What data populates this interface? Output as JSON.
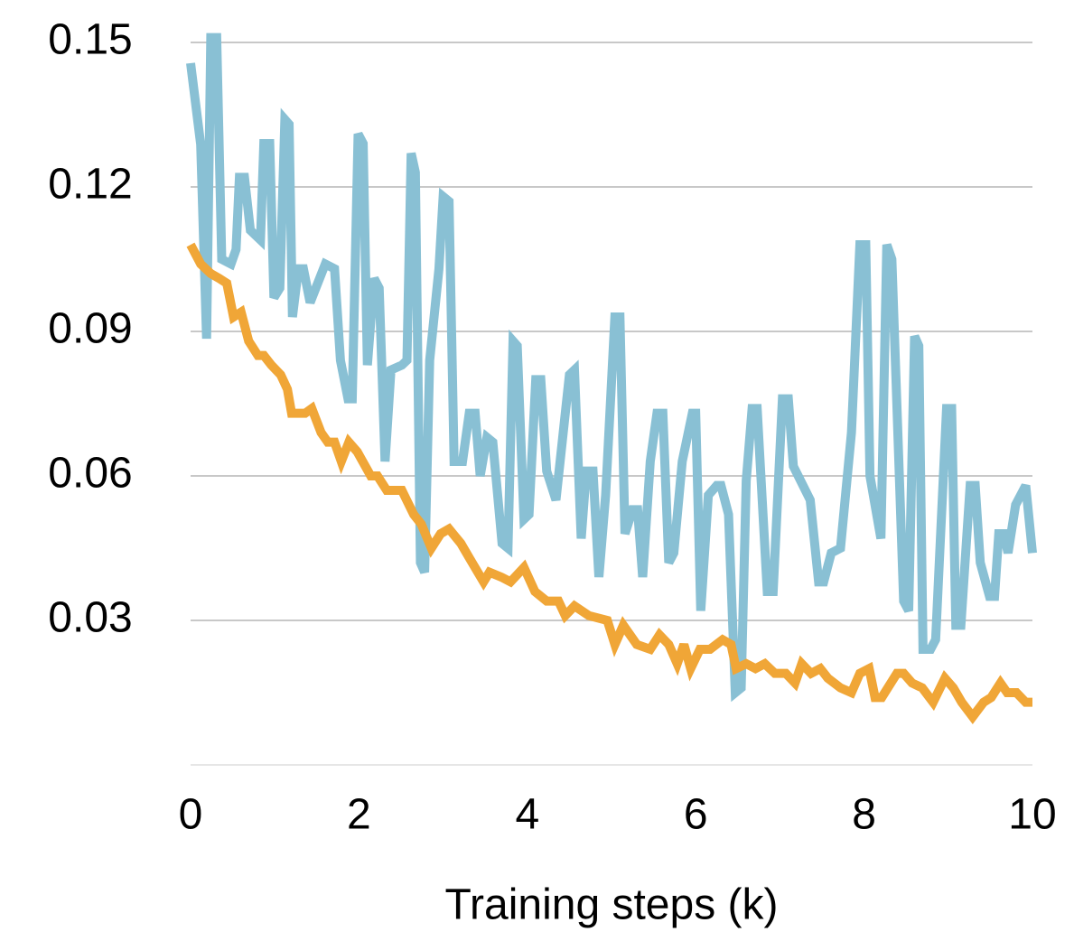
{
  "chart_data": {
    "type": "line",
    "xlabel": "Training steps (k)",
    "xlim": [
      0,
      10
    ],
    "xticks": [
      0,
      2,
      4,
      6,
      8,
      10
    ],
    "ylim": [
      0,
      0.15
    ],
    "yticks": [
      0.03,
      0.06,
      0.09,
      0.12,
      0.15
    ],
    "grid": true,
    "series": [
      {
        "color": "#89c0d4",
        "x": [
          0,
          0.12,
          0.19,
          0.24,
          0.31,
          0.37,
          0.48,
          0.54,
          0.58,
          0.64,
          0.71,
          0.83,
          0.87,
          0.94,
          0.99,
          1.06,
          1.12,
          1.17,
          1.21,
          1.28,
          1.34,
          1.42,
          1.6,
          1.71,
          1.78,
          1.87,
          1.92,
          1.99,
          2.05,
          2.1,
          2.18,
          2.24,
          2.31,
          2.38,
          2.51,
          2.57,
          2.62,
          2.67,
          2.73,
          2.78,
          2.84,
          2.95,
          3.0,
          3.07,
          3.13,
          3.23,
          3.31,
          3.38,
          3.44,
          3.52,
          3.59,
          3.7,
          3.77,
          3.83,
          3.88,
          3.96,
          4.02,
          4.1,
          4.16,
          4.23,
          4.34,
          4.5,
          4.56,
          4.64,
          4.7,
          4.78,
          4.85,
          4.93,
          5.04,
          5.1,
          5.16,
          5.25,
          5.31,
          5.37,
          5.46,
          5.54,
          5.61,
          5.68,
          5.74,
          5.84,
          5.96,
          6.0,
          6.06,
          6.15,
          6.25,
          6.3,
          6.39,
          6.47,
          6.54,
          6.6,
          6.67,
          6.73,
          6.85,
          6.92,
          7.03,
          7.1,
          7.16,
          7.36,
          7.46,
          7.52,
          7.61,
          7.72,
          7.85,
          7.95,
          8.02,
          8.07,
          8.2,
          8.27,
          8.33,
          8.47,
          8.53,
          8.6,
          8.65,
          8.7,
          8.79,
          8.85,
          8.98,
          9.04,
          9.09,
          9.15,
          9.26,
          9.32,
          9.38,
          9.49,
          9.55,
          9.6,
          9.66,
          9.71,
          9.8,
          9.92,
          10
        ],
        "values": [
          0.1457,
          0.1288,
          0.0885,
          0.151,
          0.151,
          0.105,
          0.104,
          0.107,
          0.122,
          0.122,
          0.111,
          0.109,
          0.129,
          0.129,
          0.097,
          0.099,
          0.134,
          0.133,
          0.093,
          0.103,
          0.103,
          0.096,
          0.104,
          0.103,
          0.084,
          0.076,
          0.076,
          0.131,
          0.129,
          0.083,
          0.101,
          0.099,
          0.063,
          0.082,
          0.083,
          0.084,
          0.127,
          0.123,
          0.042,
          0.04,
          0.084,
          0.103,
          0.118,
          0.117,
          0.063,
          0.063,
          0.073,
          0.073,
          0.06,
          0.068,
          0.067,
          0.046,
          0.045,
          0.088,
          0.087,
          0.051,
          0.052,
          0.08,
          0.08,
          0.061,
          0.055,
          0.081,
          0.082,
          0.047,
          0.061,
          0.061,
          0.039,
          0.056,
          0.093,
          0.093,
          0.048,
          0.053,
          0.053,
          0.039,
          0.063,
          0.073,
          0.073,
          0.042,
          0.044,
          0.063,
          0.073,
          0.073,
          0.032,
          0.056,
          0.058,
          0.058,
          0.052,
          0.015,
          0.016,
          0.059,
          0.074,
          0.074,
          0.036,
          0.036,
          0.076,
          0.076,
          0.062,
          0.055,
          0.038,
          0.038,
          0.044,
          0.045,
          0.069,
          0.108,
          0.108,
          0.06,
          0.047,
          0.108,
          0.105,
          0.034,
          0.032,
          0.089,
          0.087,
          0.024,
          0.024,
          0.026,
          0.074,
          0.074,
          0.029,
          0.029,
          0.058,
          0.058,
          0.042,
          0.035,
          0.035,
          0.048,
          0.048,
          0.044,
          0.054,
          0.058,
          0.044
        ]
      },
      {
        "color": "#f0a637",
        "x": [
          0,
          0.12,
          0.24,
          0.34,
          0.43,
          0.51,
          0.6,
          0.69,
          0.8,
          0.87,
          0.96,
          1.07,
          1.15,
          1.2,
          1.36,
          1.44,
          1.55,
          1.63,
          1.71,
          1.79,
          1.88,
          1.98,
          2.14,
          2.22,
          2.33,
          2.51,
          2.65,
          2.74,
          2.86,
          2.97,
          3.07,
          3.21,
          3.31,
          3.48,
          3.55,
          3.69,
          3.8,
          3.96,
          4.09,
          4.23,
          4.37,
          4.45,
          4.56,
          4.73,
          4.95,
          5.04,
          5.14,
          5.3,
          5.46,
          5.57,
          5.68,
          5.78,
          5.86,
          5.94,
          6.05,
          6.17,
          6.32,
          6.42,
          6.48,
          6.6,
          6.71,
          6.82,
          6.94,
          7.07,
          7.18,
          7.26,
          7.37,
          7.48,
          7.57,
          7.72,
          7.85,
          7.95,
          8.06,
          8.13,
          8.21,
          8.39,
          8.47,
          8.57,
          8.69,
          8.82,
          8.96,
          9.06,
          9.16,
          9.29,
          9.42,
          9.51,
          9.62,
          9.7,
          9.81,
          9.92,
          10
        ],
        "values": [
          0.108,
          0.104,
          0.102,
          0.101,
          0.1,
          0.093,
          0.094,
          0.088,
          0.085,
          0.085,
          0.083,
          0.081,
          0.078,
          0.073,
          0.073,
          0.074,
          0.069,
          0.067,
          0.067,
          0.063,
          0.067,
          0.065,
          0.06,
          0.06,
          0.057,
          0.057,
          0.052,
          0.05,
          0.045,
          0.048,
          0.049,
          0.046,
          0.043,
          0.038,
          0.04,
          0.039,
          0.038,
          0.041,
          0.036,
          0.034,
          0.034,
          0.031,
          0.033,
          0.031,
          0.03,
          0.025,
          0.029,
          0.025,
          0.024,
          0.027,
          0.025,
          0.021,
          0.025,
          0.02,
          0.024,
          0.024,
          0.026,
          0.025,
          0.02,
          0.021,
          0.02,
          0.021,
          0.019,
          0.019,
          0.017,
          0.021,
          0.019,
          0.02,
          0.018,
          0.016,
          0.015,
          0.019,
          0.02,
          0.014,
          0.014,
          0.019,
          0.019,
          0.017,
          0.016,
          0.013,
          0.018,
          0.016,
          0.013,
          0.01,
          0.013,
          0.014,
          0.017,
          0.015,
          0.015,
          0.013,
          0.013
        ]
      }
    ]
  }
}
